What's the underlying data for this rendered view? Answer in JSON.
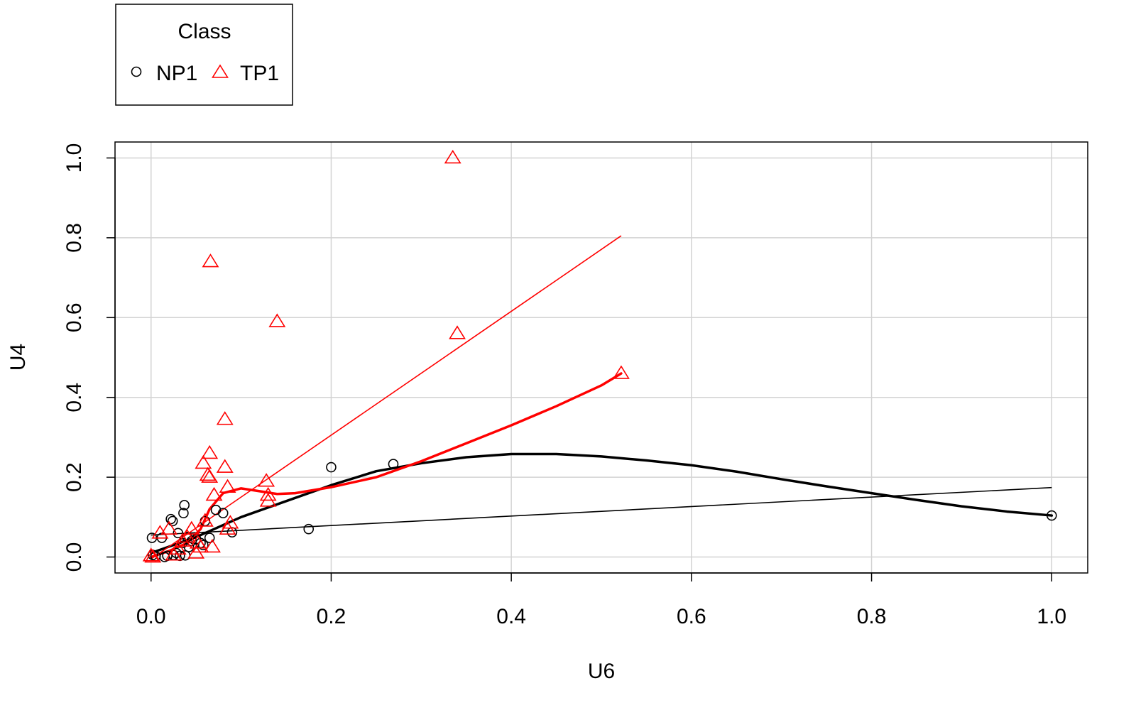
{
  "chart_data": {
    "type": "scatter",
    "title": "",
    "xlabel": "U6",
    "ylabel": "U4",
    "xlim": [
      -0.04,
      1.04
    ],
    "ylim": [
      -0.04,
      1.04
    ],
    "xticks": [
      "0.0",
      "0.2",
      "0.4",
      "0.6",
      "0.8",
      "1.0"
    ],
    "yticks": [
      "0.0",
      "0.2",
      "0.4",
      "0.6",
      "0.8",
      "1.0"
    ],
    "grid": true,
    "legend": {
      "title": "Class",
      "placement": "top-left, outside plot",
      "entries": [
        {
          "label": "NP1",
          "marker": "circle",
          "color": "#000000"
        },
        {
          "label": "TP1",
          "marker": "triangle",
          "color": "#ff0000"
        }
      ]
    },
    "series": [
      {
        "name": "NP1",
        "marker": "circle",
        "color": "#000000",
        "points": [
          [
            0.001,
            0.048
          ],
          [
            0.002,
            0.005
          ],
          [
            0.005,
            0.002
          ],
          [
            0.012,
            0.048
          ],
          [
            0.015,
            0.0
          ],
          [
            0.018,
            0.003
          ],
          [
            0.022,
            0.095
          ],
          [
            0.024,
            0.09
          ],
          [
            0.025,
            0.005
          ],
          [
            0.028,
            0.01
          ],
          [
            0.03,
            0.06
          ],
          [
            0.032,
            0.003
          ],
          [
            0.035,
            0.035
          ],
          [
            0.036,
            0.11
          ],
          [
            0.037,
            0.13
          ],
          [
            0.038,
            0.004
          ],
          [
            0.04,
            0.05
          ],
          [
            0.042,
            0.025
          ],
          [
            0.045,
            0.04
          ],
          [
            0.05,
            0.045
          ],
          [
            0.055,
            0.035
          ],
          [
            0.058,
            0.03
          ],
          [
            0.06,
            0.09
          ],
          [
            0.065,
            0.048
          ],
          [
            0.072,
            0.118
          ],
          [
            0.08,
            0.11
          ],
          [
            0.09,
            0.062
          ],
          [
            0.175,
            0.07
          ],
          [
            0.2,
            0.225
          ],
          [
            0.269,
            0.233
          ],
          [
            1.0,
            0.104
          ]
        ],
        "trend_linear": [
          [
            0.0,
            0.055
          ],
          [
            1.0,
            0.174
          ]
        ],
        "trend_smooth": [
          [
            0.0,
            0.01
          ],
          [
            0.05,
            0.05
          ],
          [
            0.1,
            0.1
          ],
          [
            0.15,
            0.14
          ],
          [
            0.2,
            0.18
          ],
          [
            0.25,
            0.215
          ],
          [
            0.3,
            0.235
          ],
          [
            0.35,
            0.25
          ],
          [
            0.4,
            0.258
          ],
          [
            0.45,
            0.258
          ],
          [
            0.5,
            0.252
          ],
          [
            0.55,
            0.242
          ],
          [
            0.6,
            0.23
          ],
          [
            0.65,
            0.214
          ],
          [
            0.7,
            0.195
          ],
          [
            0.75,
            0.177
          ],
          [
            0.8,
            0.16
          ],
          [
            0.85,
            0.143
          ],
          [
            0.9,
            0.127
          ],
          [
            0.95,
            0.114
          ],
          [
            1.0,
            0.104
          ]
        ]
      },
      {
        "name": "TP1",
        "marker": "triangle",
        "color": "#ff0000",
        "points": [
          [
            0.0,
            0.003
          ],
          [
            0.002,
            0.0
          ],
          [
            0.01,
            0.06
          ],
          [
            0.02,
            0.07
          ],
          [
            0.025,
            0.005
          ],
          [
            0.03,
            0.02
          ],
          [
            0.035,
            0.04
          ],
          [
            0.04,
            0.05
          ],
          [
            0.045,
            0.07
          ],
          [
            0.05,
            0.01
          ],
          [
            0.052,
            0.035
          ],
          [
            0.055,
            0.025
          ],
          [
            0.058,
            0.235
          ],
          [
            0.06,
            0.09
          ],
          [
            0.063,
            0.205
          ],
          [
            0.065,
            0.2
          ],
          [
            0.065,
            0.26
          ],
          [
            0.066,
            0.74
          ],
          [
            0.068,
            0.025
          ],
          [
            0.07,
            0.155
          ],
          [
            0.082,
            0.345
          ],
          [
            0.082,
            0.225
          ],
          [
            0.085,
            0.07
          ],
          [
            0.085,
            0.175
          ],
          [
            0.088,
            0.085
          ],
          [
            0.128,
            0.19
          ],
          [
            0.13,
            0.155
          ],
          [
            0.13,
            0.14
          ],
          [
            0.14,
            0.59
          ],
          [
            0.335,
            1.0
          ],
          [
            0.34,
            0.56
          ],
          [
            0.522,
            0.46
          ]
        ],
        "trend_linear": [
          [
            0.0,
            -0.005
          ],
          [
            0.522,
            0.805
          ]
        ],
        "trend_smooth": [
          [
            0.0,
            0.0
          ],
          [
            0.02,
            0.015
          ],
          [
            0.04,
            0.035
          ],
          [
            0.055,
            0.07
          ],
          [
            0.065,
            0.12
          ],
          [
            0.08,
            0.16
          ],
          [
            0.1,
            0.172
          ],
          [
            0.12,
            0.165
          ],
          [
            0.14,
            0.158
          ],
          [
            0.16,
            0.16
          ],
          [
            0.2,
            0.175
          ],
          [
            0.25,
            0.2
          ],
          [
            0.3,
            0.24
          ],
          [
            0.35,
            0.285
          ],
          [
            0.4,
            0.33
          ],
          [
            0.45,
            0.378
          ],
          [
            0.5,
            0.43
          ],
          [
            0.522,
            0.46
          ]
        ]
      }
    ]
  }
}
